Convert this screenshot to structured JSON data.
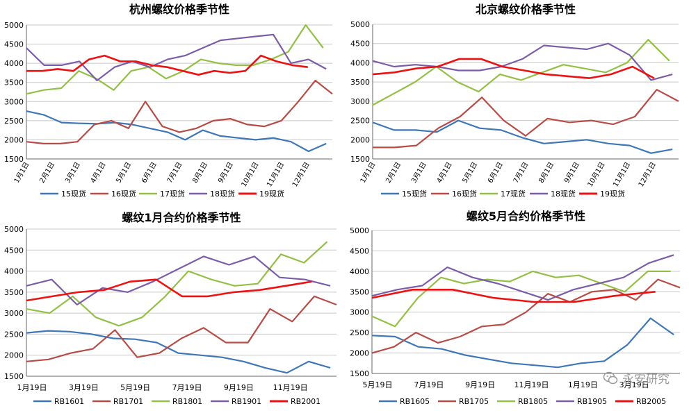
{
  "colors": {
    "s15": "#3e77b8",
    "s16": "#b84b45",
    "s17": "#93c044",
    "s18": "#7b5ca9",
    "s19": "#ee1111"
  },
  "watermark": {
    "icon": "wechat-icon",
    "text": "永安研究"
  },
  "chart_data": [
    {
      "type": "line",
      "title": "杭州螺纹价格季节性",
      "ylim": [
        1500,
        5000
      ],
      "yticks": [
        "1500",
        "2000",
        "2500",
        "3000",
        "3500",
        "4000",
        "4500",
        "5000"
      ],
      "x_tick_labels": [
        "1月1日",
        "2月1日",
        "3月1日",
        "4月1日",
        "5月1日",
        "6月1日",
        "7月1日",
        "8月1日",
        "9月1日",
        "10月1日",
        "11月1日",
        "12月1日"
      ],
      "series": [
        {
          "name": "15现货",
          "values": [
            2750,
            2650,
            2450,
            2430,
            2420,
            2450,
            2400,
            2300,
            2200,
            2000,
            2250,
            2100,
            2050,
            2000,
            2050,
            1950,
            1700,
            1900
          ]
        },
        {
          "name": "16现货",
          "values": [
            1950,
            1900,
            1900,
            1950,
            2400,
            2500,
            2300,
            3000,
            2350,
            2200,
            2300,
            2500,
            2550,
            2400,
            2350,
            2500,
            3000,
            3550,
            3200
          ]
        },
        {
          "name": "17现货",
          "values": [
            3200,
            3300,
            3350,
            3800,
            3600,
            3300,
            3800,
            3900,
            3600,
            3800,
            4100,
            4000,
            3950,
            3950,
            4100,
            4300,
            5000,
            4400
          ]
        },
        {
          "name": "18现货",
          "values": [
            4400,
            3950,
            3950,
            4050,
            3550,
            3900,
            4050,
            3900,
            4100,
            4200,
            4400,
            4600,
            4650,
            4700,
            4750,
            4000,
            4100,
            3850
          ]
        },
        {
          "name": "19现货",
          "values": [
            3800,
            3800,
            3850,
            3800,
            4100,
            4200,
            4050,
            4050,
            3950,
            3900,
            3800,
            3700,
            3800,
            3750,
            3800,
            4200,
            4050,
            3950,
            3900
          ]
        }
      ]
    },
    {
      "type": "line",
      "title": "北京螺纹价格季节性",
      "ylim": [
        1500,
        5000
      ],
      "yticks": [
        "1500",
        "2000",
        "2500",
        "3000",
        "3500",
        "4000",
        "4500",
        "5000"
      ],
      "x_tick_labels": [
        "1月1日",
        "2月1日",
        "3月1日",
        "4月1日",
        "5月1日",
        "6月1日",
        "7月1日",
        "8月1日",
        "9月1日",
        "10月1日",
        "11月1日",
        "12月1日"
      ],
      "series": [
        {
          "name": "15现货",
          "values": [
            2450,
            2250,
            2250,
            2200,
            2500,
            2300,
            2250,
            2050,
            1900,
            1950,
            2000,
            1900,
            1850,
            1650,
            1750
          ]
        },
        {
          "name": "16现货",
          "values": [
            1800,
            1800,
            1850,
            2300,
            2600,
            3100,
            2500,
            2100,
            2550,
            2450,
            2500,
            2400,
            2600,
            3300,
            3000
          ]
        },
        {
          "name": "17现货",
          "values": [
            2900,
            3200,
            3500,
            3900,
            3500,
            3250,
            3700,
            3550,
            3750,
            3950,
            3850,
            3750,
            4000,
            4600,
            4050
          ]
        },
        {
          "name": "18现货",
          "values": [
            4050,
            3900,
            3950,
            3900,
            3800,
            3800,
            3900,
            4100,
            4450,
            4400,
            4350,
            4500,
            4200,
            3550,
            3700
          ]
        },
        {
          "name": "19现货",
          "values": [
            3700,
            3750,
            3850,
            3900,
            4100,
            4100,
            3900,
            3800,
            3700,
            3650,
            3600,
            3700,
            3900,
            3600
          ]
        }
      ]
    },
    {
      "type": "line",
      "title": "螺纹1月合约价格季节性",
      "ylim": [
        1500,
        5000
      ],
      "yticks": [
        "1500",
        "2000",
        "2500",
        "3000",
        "3500",
        "4000",
        "4500",
        "5000"
      ],
      "x_tick_labels": [
        "1月19日",
        "3月19日",
        "5月19日",
        "7月19日",
        "9月19日",
        "11月19日"
      ],
      "series": [
        {
          "name": "RB1601",
          "values": [
            2530,
            2580,
            2560,
            2500,
            2400,
            2380,
            2300,
            2050,
            2000,
            1950,
            1850,
            1700,
            1580,
            1850,
            1700
          ]
        },
        {
          "name": "RB1701",
          "values": [
            1850,
            1900,
            2050,
            2150,
            2600,
            1950,
            2050,
            2400,
            2650,
            2300,
            2300,
            3100,
            2800,
            3400,
            3200
          ]
        },
        {
          "name": "RB1801",
          "values": [
            3100,
            3000,
            3400,
            2900,
            2700,
            2900,
            3400,
            4000,
            3800,
            3650,
            3700,
            4400,
            4200,
            4700
          ]
        },
        {
          "name": "RB1901",
          "values": [
            3650,
            3800,
            3200,
            3600,
            3500,
            3750,
            4050,
            4350,
            4150,
            4350,
            3850,
            3800,
            3650
          ]
        },
        {
          "name": "RB2001",
          "values": [
            3300,
            3400,
            3500,
            3550,
            3750,
            3800,
            3400,
            3400,
            3500,
            3550,
            3650,
            3750
          ]
        }
      ]
    },
    {
      "type": "line",
      "title": "螺纹5月合约价格季节性",
      "ylim": [
        1500,
        5000
      ],
      "yticks": [
        "1500",
        "2000",
        "2500",
        "3000",
        "3500",
        "4000",
        "4500",
        "5000"
      ],
      "x_tick_labels": [
        "5月19日",
        "7月19日",
        "9月19日",
        "11月19日",
        "1月19日",
        "3月19日"
      ],
      "series": [
        {
          "name": "RB1605",
          "values": [
            2430,
            2400,
            2150,
            2100,
            1950,
            1850,
            1750,
            1700,
            1650,
            1750,
            1800,
            2200,
            2850,
            2450
          ]
        },
        {
          "name": "RB1705",
          "values": [
            2000,
            2150,
            2500,
            2250,
            2400,
            2650,
            2700,
            3000,
            3450,
            3250,
            3500,
            3550,
            3300,
            3800,
            3600
          ]
        },
        {
          "name": "RB1805",
          "values": [
            2900,
            2650,
            3350,
            3850,
            3700,
            3800,
            3750,
            4000,
            3850,
            3900,
            3700,
            3500,
            4000,
            4000
          ]
        },
        {
          "name": "RB1905",
          "values": [
            3400,
            3550,
            3650,
            4100,
            3850,
            3700,
            3500,
            3300,
            3550,
            3700,
            3850,
            4200,
            4400
          ]
        },
        {
          "name": "RB2005",
          "values": [
            3350,
            3550,
            3550,
            3350,
            3250,
            3250,
            3400,
            3500
          ]
        }
      ]
    }
  ]
}
